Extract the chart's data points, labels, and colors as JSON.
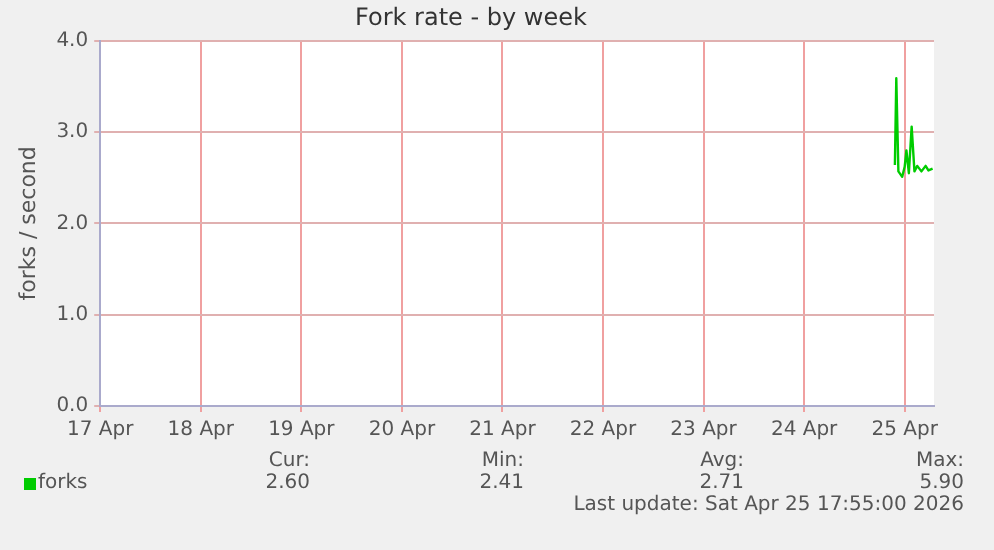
{
  "chart_data": {
    "type": "line",
    "title": "Fork rate - by week",
    "ylabel": "forks / second",
    "x": [
      "2026-04-24T21:40",
      "2026-04-24T22:00",
      "2026-04-24T22:30",
      "2026-04-24T23:25",
      "2026-04-25T00:00",
      "2026-04-25T00:25",
      "2026-04-25T01:00",
      "2026-04-25T01:40",
      "2026-04-25T02:20",
      "2026-04-25T03:00",
      "2026-04-25T04:00",
      "2026-04-25T05:00",
      "2026-04-25T05:40",
      "2026-04-25T06:40"
    ],
    "series": [
      {
        "name": "forks",
        "color": "#00cc00",
        "values": [
          2.64,
          3.59,
          2.57,
          2.51,
          2.62,
          2.8,
          2.55,
          3.06,
          2.57,
          2.63,
          2.57,
          2.63,
          2.58,
          2.6
        ]
      }
    ],
    "xlim": [
      "2026-04-17T00:00",
      "2026-04-25T07:00"
    ],
    "xticks": [
      {
        "value": "2026-04-17",
        "label": "17 Apr"
      },
      {
        "value": "2026-04-18",
        "label": "18 Apr"
      },
      {
        "value": "2026-04-19",
        "label": "19 Apr"
      },
      {
        "value": "2026-04-20",
        "label": "20 Apr"
      },
      {
        "value": "2026-04-21",
        "label": "21 Apr"
      },
      {
        "value": "2026-04-22",
        "label": "22 Apr"
      },
      {
        "value": "2026-04-23",
        "label": "23 Apr"
      },
      {
        "value": "2026-04-24",
        "label": "24 Apr"
      },
      {
        "value": "2026-04-25",
        "label": "25 Apr"
      }
    ],
    "ylim": [
      0,
      4
    ],
    "yticks": [
      {
        "value": 0,
        "label": "0.0"
      },
      {
        "value": 1,
        "label": "1.0"
      },
      {
        "value": 2,
        "label": "2.0"
      },
      {
        "value": 3,
        "label": "3.0"
      },
      {
        "value": 4,
        "label": "4.0"
      }
    ],
    "grid": true,
    "legend": "bottom left",
    "marker": "none",
    "line_style": "solid",
    "annotations": [
      "Cur:",
      "2.60",
      "Min:",
      "2.41",
      "Avg:",
      "2.71",
      "Max:",
      "5.90",
      "Last update: Sat Apr 25 17:55:00 2026"
    ]
  }
}
